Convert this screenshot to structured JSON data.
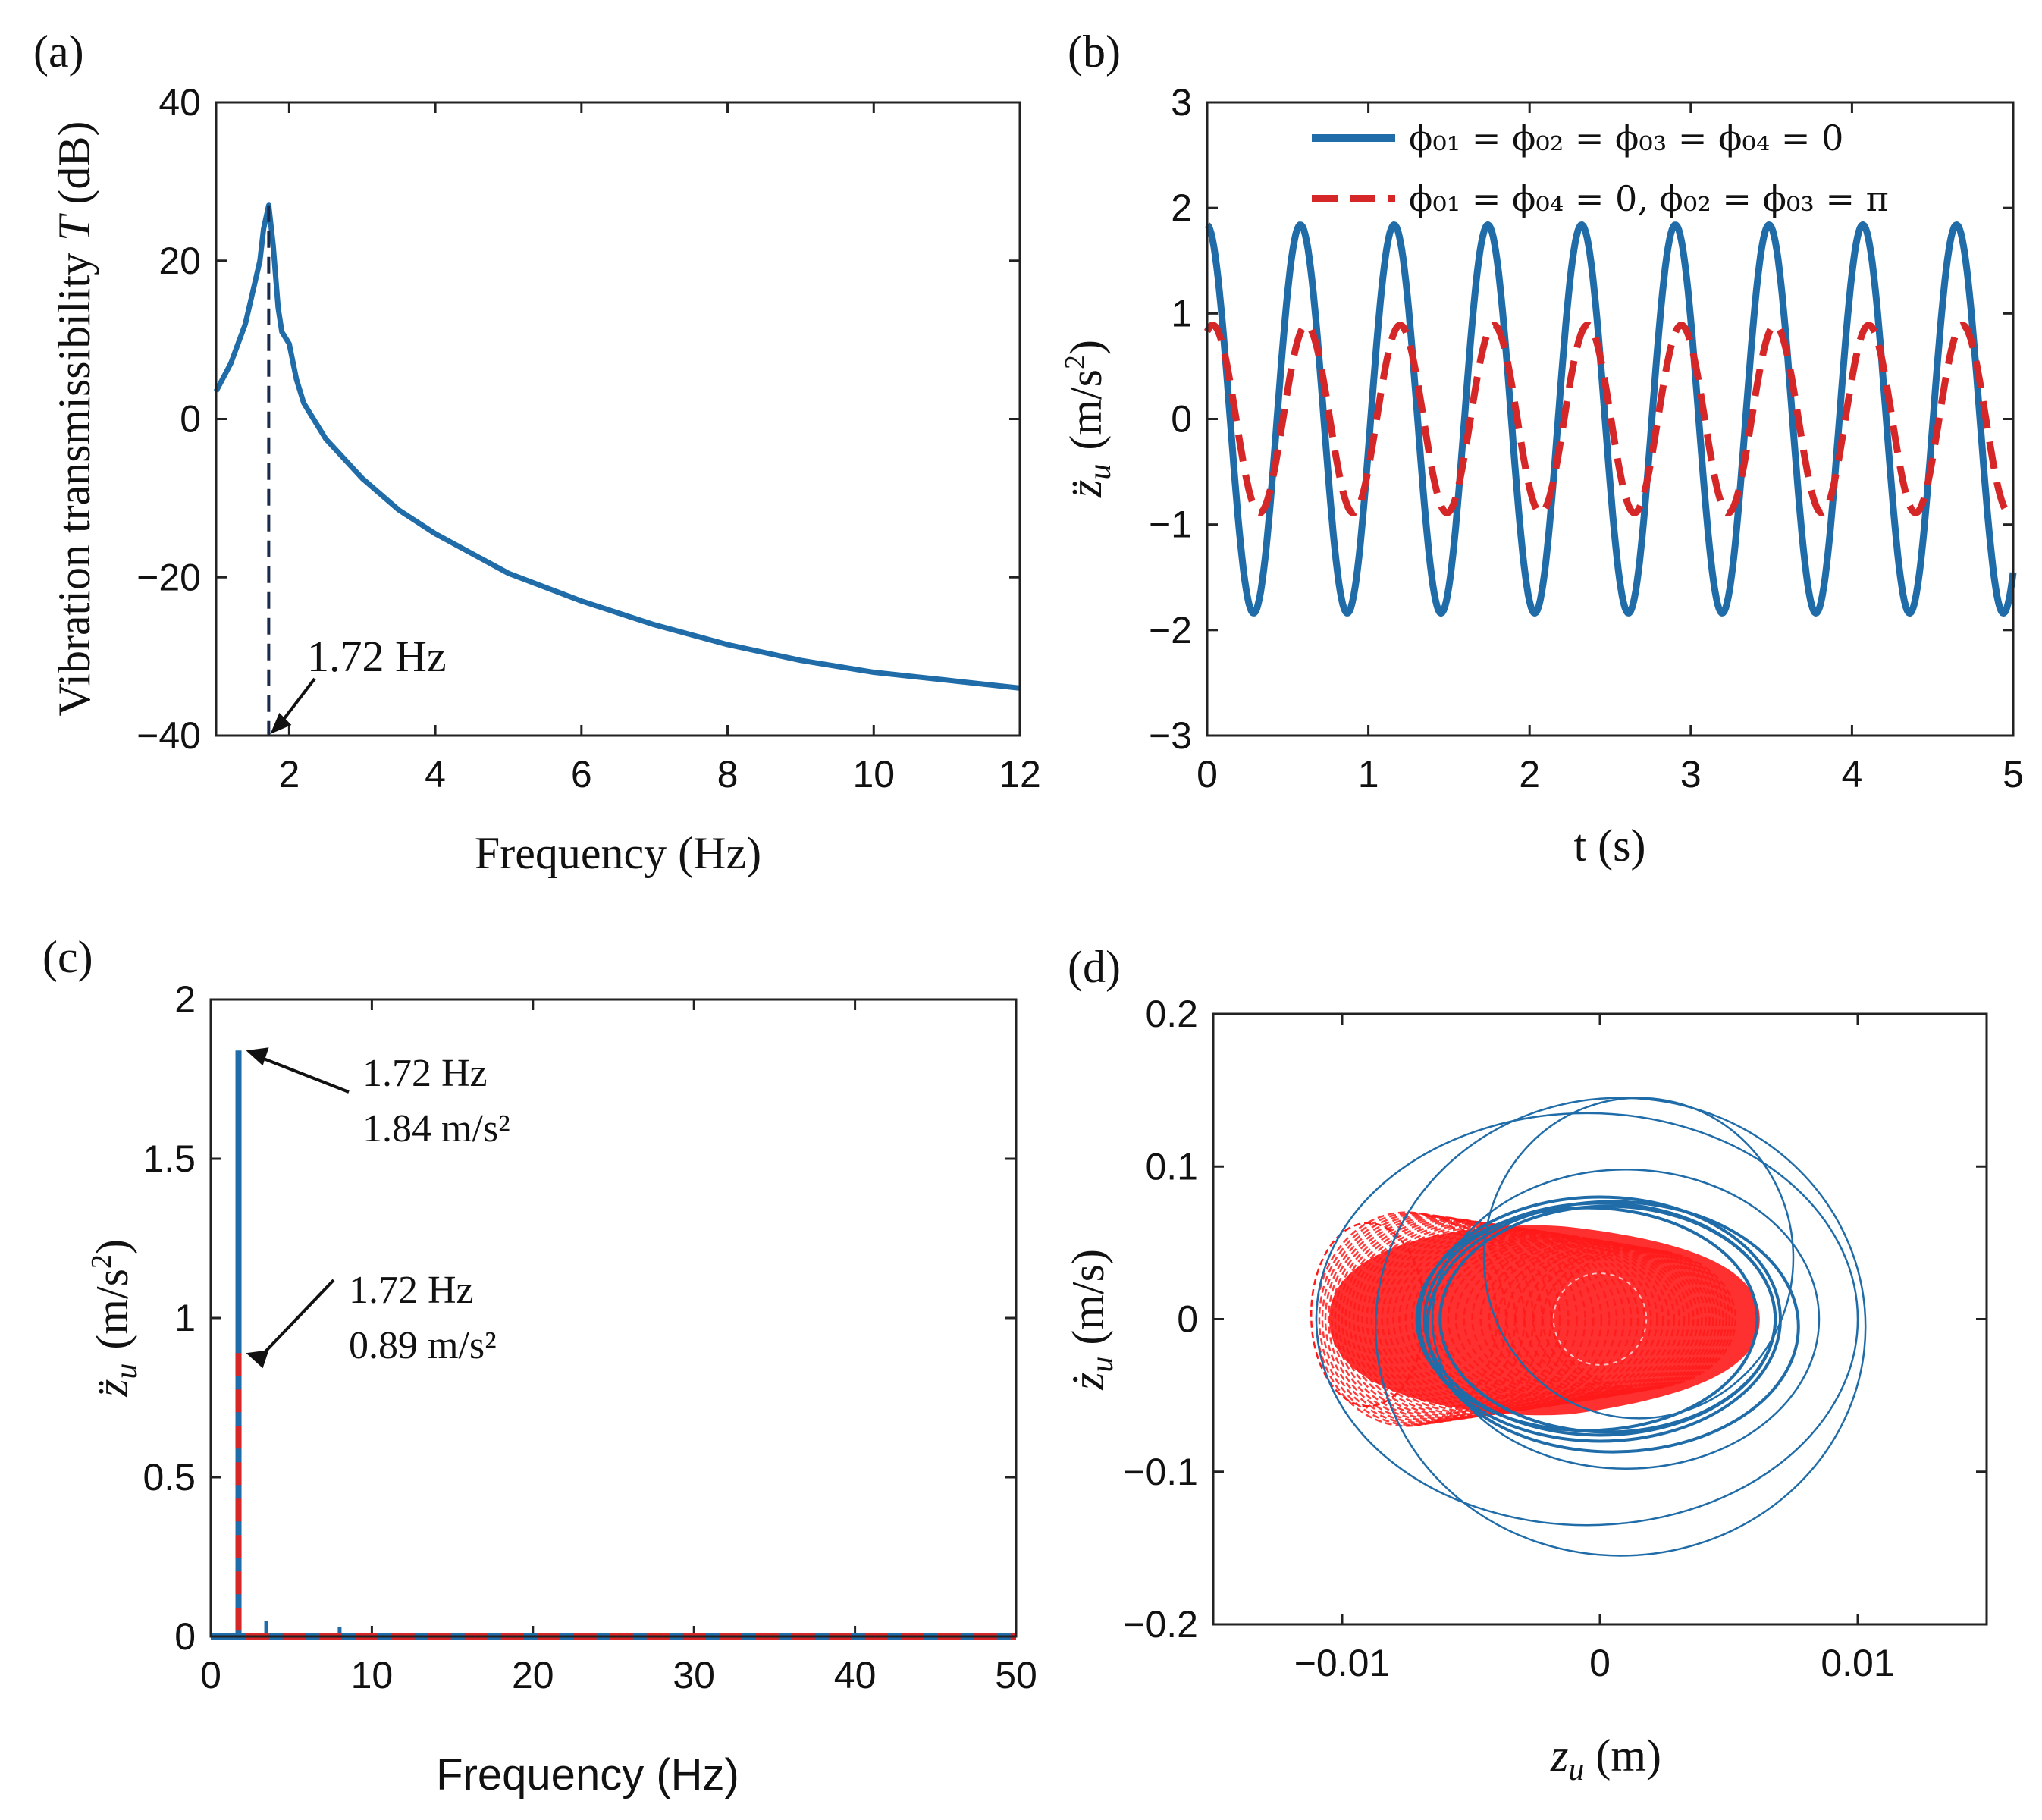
{
  "colors": {
    "blue": "#1f6ca8",
    "red": "#d62728",
    "dark": "#1a2a4a",
    "axis": "#222222"
  },
  "chart_data": [
    {
      "panel": "(a)",
      "type": "line",
      "xlabel": "Frequency (Hz)",
      "ylabel": "Vibration transmissibility T (dB)",
      "ylabel_prefix": "Vibration transmissibility ",
      "ylabel_var": "T",
      "ylabel_unit": " (dB)",
      "xlim": [
        1,
        12
      ],
      "ylim": [
        -40,
        40
      ],
      "xticks": [
        2,
        4,
        6,
        8,
        10,
        12
      ],
      "xtick_labels": [
        "2",
        "4",
        "6",
        "8",
        "10",
        "12"
      ],
      "yticks": [
        -40,
        -20,
        0,
        20,
        40
      ],
      "ytick_labels": [
        "−40",
        "−20",
        "0",
        "20",
        "40"
      ],
      "series": [
        {
          "name": "T",
          "color": "#1f6ca8",
          "x": [
            1.0,
            1.2,
            1.4,
            1.5,
            1.6,
            1.65,
            1.72,
            1.78,
            1.85,
            1.9,
            2.0,
            2.1,
            2.2,
            2.5,
            3.0,
            3.5,
            4.0,
            5.0,
            6.0,
            7.0,
            8.0,
            9.0,
            10.0,
            11.0,
            12.0
          ],
          "y": [
            3.5,
            7,
            12,
            16,
            20,
            24,
            27,
            22,
            14,
            11,
            9.5,
            5,
            2,
            -2.5,
            -7.5,
            -11.5,
            -14.5,
            -19.5,
            -23,
            -26,
            -28.5,
            -30.5,
            -32,
            -33,
            -34
          ]
        }
      ],
      "marker_line": {
        "x": 1.72,
        "from": -40,
        "to": 27
      },
      "annotation": {
        "text": "1.72 Hz",
        "x": 1.72,
        "y": -40
      }
    },
    {
      "panel": "(b)",
      "type": "line",
      "xlabel": "t (s)",
      "ylabel_var": "z̈",
      "ylabel_sub": "u",
      "ylabel_unit": "(m/s",
      "ylabel_exp": "2",
      "xlim": [
        0,
        5
      ],
      "ylim": [
        -3,
        3
      ],
      "xticks": [
        0,
        1,
        2,
        3,
        4,
        5
      ],
      "xtick_labels": [
        "0",
        "1",
        "2",
        "3",
        "4",
        "5"
      ],
      "yticks": [
        -3,
        -2,
        -1,
        0,
        1,
        2,
        3
      ],
      "ytick_labels": [
        "−3",
        "−2",
        "−1",
        "0",
        "1",
        "2",
        "3"
      ],
      "series": [
        {
          "name": "ϕ₀₁ = ϕ₀₂ = ϕ₀₃ = ϕ₀₄ = 0",
          "style": "solid",
          "color": "#1f6ca8",
          "frequency_hz": 1.72,
          "amplitude": 1.84,
          "phase_rad": 1.6
        },
        {
          "name": "ϕ₀₁ = ϕ₀₄ = 0, ϕ₀₂ = ϕ₀₃ = π",
          "style": "dashed",
          "color": "#d62728",
          "frequency_hz": 1.72,
          "amplitude": 0.89,
          "phase_rad": 1.2
        }
      ],
      "legend_loc": "top-right"
    },
    {
      "panel": "(c)",
      "type": "line",
      "xlabel": "Frequency (Hz)",
      "ylabel_var": "z̈",
      "ylabel_sub": "u",
      "ylabel_unit": "(m/s",
      "ylabel_exp": "2",
      "xlim": [
        0,
        50
      ],
      "ylim": [
        0,
        2
      ],
      "xticks": [
        0,
        10,
        20,
        30,
        40,
        50
      ],
      "xtick_labels": [
        "0",
        "10",
        "20",
        "30",
        "40",
        "50"
      ],
      "yticks": [
        0,
        0.5,
        1,
        1.5,
        2
      ],
      "ytick_labels": [
        "0",
        "0.5",
        "1",
        "1.5",
        "2"
      ],
      "series": [
        {
          "name": "blue spectrum",
          "style": "solid",
          "color": "#1f6ca8",
          "peak_x": 1.72,
          "peak_y": 1.84
        },
        {
          "name": "red spectrum",
          "style": "dashed",
          "color": "#d62728",
          "peak_x": 1.72,
          "peak_y": 0.89
        }
      ],
      "annotations": [
        {
          "line1": "1.72 Hz",
          "line2": "1.84 m/s²",
          "x": 1.72,
          "y": 1.84
        },
        {
          "line1": "1.72 Hz",
          "line2": "0.89 m/s²",
          "x": 1.72,
          "y": 0.89
        }
      ]
    },
    {
      "panel": "(d)",
      "type": "line",
      "xlabel_var": "z",
      "xlabel_sub": "u",
      "xlabel_unit": " (m)",
      "ylabel_var": "ż",
      "ylabel_sub": "u",
      "ylabel_unit": " (m/s)",
      "xlim": [
        -0.015,
        0.015
      ],
      "ylim": [
        -0.2,
        0.2
      ],
      "xticks": [
        -0.01,
        0,
        0.01
      ],
      "xtick_labels": [
        "−0.01",
        "0",
        "0.01"
      ],
      "yticks": [
        -0.2,
        -0.1,
        0,
        0.1,
        0.2
      ],
      "ytick_labels": [
        "−0.2",
        "−0.1",
        "0",
        "0.1",
        "0.2"
      ],
      "series": [
        {
          "name": "blue phase trajectory",
          "style": "solid",
          "color": "#1f6ca8",
          "loops": [
            {
              "cx": -0.0005,
              "cy": 0.0,
              "rx": 0.0105,
              "ry": 0.135
            },
            {
              "cx": 0.0008,
              "cy": -0.005,
              "rx": 0.0095,
              "ry": 0.15
            },
            {
              "cx": 0.001,
              "cy": 0.0,
              "rx": 0.0075,
              "ry": 0.098
            },
            {
              "cx": 0.0015,
              "cy": 0.04,
              "rx": 0.006,
              "ry": 0.105
            },
            {
              "cx": 0.0,
              "cy": 0.0,
              "rx": 0.0068,
              "ry": 0.076
            },
            {
              "cx": 0.0003,
              "cy": 0.0,
              "rx": 0.0065,
              "ry": 0.074
            },
            {
              "cx": 0.0,
              "cy": 0.0,
              "rx": 0.007,
              "ry": 0.08
            },
            {
              "cx": 0.0005,
              "cy": -0.005,
              "rx": 0.0072,
              "ry": 0.082
            },
            {
              "cx": -0.0005,
              "cy": 0.0,
              "rx": 0.0066,
              "ry": 0.073
            }
          ]
        },
        {
          "name": "red phase trajectory",
          "style": "dashed",
          "color": "#ff1a1a",
          "x_range": [
            -0.0115,
            0.0062
          ],
          "y_range": [
            -0.07,
            0.07
          ]
        }
      ]
    }
  ]
}
